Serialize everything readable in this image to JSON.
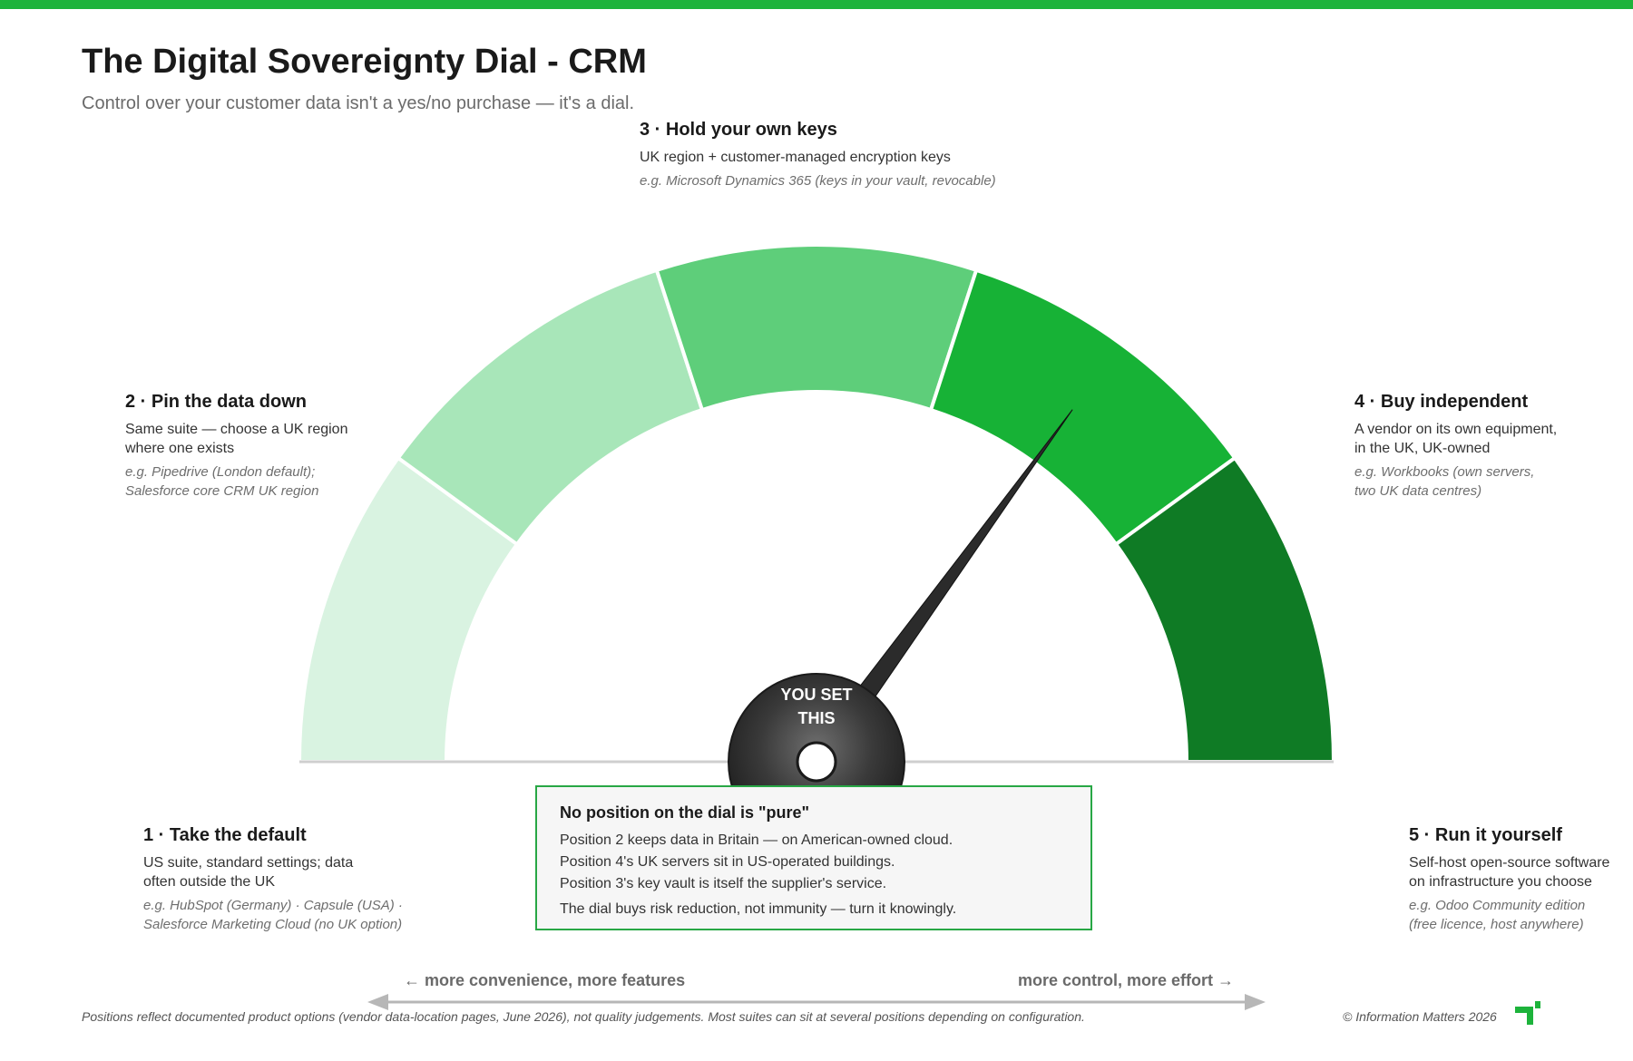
{
  "header": {
    "title": "The Digital Sovereignty Dial - CRM",
    "subtitle": "Control over your customer data isn't a yes/no purchase — it's a dial."
  },
  "dial": {
    "segment_colors": [
      "#d9f3e1",
      "#a8e6b9",
      "#5ece7a",
      "#17b236",
      "#0f7b25"
    ],
    "needle_color": "#2b2b2b",
    "hub_label_line1": "YOU SET",
    "hub_label_line2": "THIS",
    "needle_position": 4
  },
  "positions": [
    {
      "heading": "1 · Take the default",
      "description": "US suite, standard settings; data\noften outside the UK",
      "example": "e.g. HubSpot (Germany) · Capsule (USA) ·\nSalesforce Marketing Cloud (no UK option)"
    },
    {
      "heading": "2 · Pin the data down",
      "description": "Same suite — choose a UK region\nwhere one exists",
      "example": "e.g. Pipedrive (London default);\nSalesforce core CRM UK region"
    },
    {
      "heading": "3 · Hold your own keys",
      "description": "UK region + customer-managed encryption keys",
      "example": "e.g. Microsoft Dynamics 365 (keys in your vault, revocable)"
    },
    {
      "heading": "4 · Buy independent",
      "description": "A vendor on its own equipment,\nin the UK, UK-owned",
      "example": "e.g. Workbooks (own servers,\ntwo UK data centres)"
    },
    {
      "heading": "5 · Run it yourself",
      "description": "Self-host open-source software\non infrastructure you choose",
      "example": "e.g. Odoo Community edition\n(free licence, host anywhere)"
    }
  ],
  "callout": {
    "title": "No position on the dial is \"pure\"",
    "lines": [
      "Position 2 keeps data in Britain — on American-owned cloud.",
      "Position 4's UK servers sit in US-operated buildings.",
      "Position 3's key vault is itself the supplier's service."
    ],
    "conclusion": "The dial buys risk reduction, not immunity — turn it knowingly."
  },
  "axis": {
    "left_label": "← more convenience, more features",
    "right_label": "more control, more effort →"
  },
  "footer": {
    "footnote": "Positions reflect documented product options (vendor data-location pages, June 2026), not quality judgements. Most suites can sit at several positions depending on configuration.",
    "copyright": "© Information Matters 2026"
  }
}
